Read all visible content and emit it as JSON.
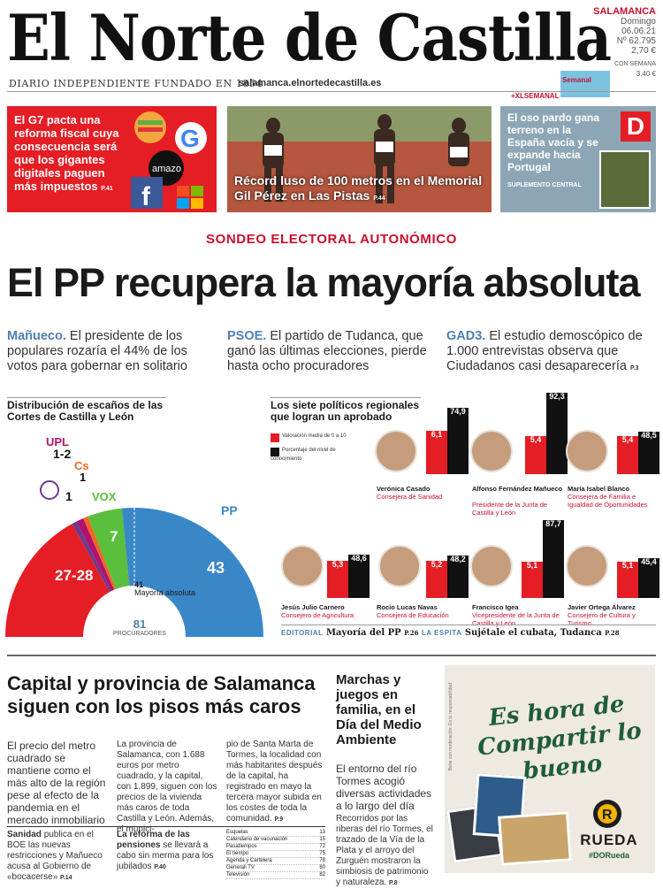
{
  "masthead": {
    "title": "El Norte de Castilla",
    "tagline": "DIARIO INDEPENDIENTE FUNDADO EN 1854",
    "url": "salamanca.elnortedecastilla.es"
  },
  "edition": {
    "city": "SALAMANCA",
    "day": "Domingo",
    "date": "06.06.21",
    "number": "Nº 62.795",
    "price": "2,70 €",
    "extra_label": "CON SEMANA",
    "extra_price": "3,40 €"
  },
  "xl": {
    "label": "+XLSEMANAL",
    "logo": "Semanal"
  },
  "promos": [
    {
      "text": "El G7 pacta una reforma fiscal cuya consecuencia será que los gigantes digitales paguen más impuestos",
      "page": "P.41",
      "color": "#e51d24"
    },
    {
      "text": "Récord luso de 100 metros en el Memorial Gil Pérez en Las Pistas",
      "page": "P.44"
    },
    {
      "text": "El oso pardo gana terreno en la España vacía y se expande hacia Portugal",
      "section": "SUPLEMENTO CENTRAL",
      "badge": "D"
    }
  ],
  "lead": {
    "kicker": "SONDEO ELECTORAL AUTONÓMICO",
    "headline": "El PP recupera la mayoría absoluta"
  },
  "columns": [
    {
      "name": "Mañueco.",
      "text": "El presidente de los populares rozaría el 44% de los votos para gobernar en solitario"
    },
    {
      "name": "PSOE.",
      "text": "El partido de Tudanca, que ganó las últimas elecciones, pierde hasta ocho procuradores"
    },
    {
      "name": "GAD3.",
      "text": "El estudio demoscópico de 1.000 entrevistas observa que Ciudadanos casi desaparecería",
      "page": "P.3"
    }
  ],
  "seats": {
    "title": "Distribución de escaños de las Cortes de Castilla y León",
    "total": "81",
    "total_label": "PROCURADORES",
    "majority": "41",
    "majority_label": "Mayoría absoluta",
    "parties": [
      {
        "name": "PSOE",
        "seats": "27-28",
        "color": "#e51d24"
      },
      {
        "name": "Podemos",
        "seats": "1",
        "color": "#6b3c8e"
      },
      {
        "name": "UPL",
        "seats": "1-2",
        "color": "#b0126e"
      },
      {
        "name": "Cs",
        "seats": "1",
        "color": "#f26522"
      },
      {
        "name": "VOX",
        "seats": "7",
        "color": "#5abf3c"
      },
      {
        "name": "PP",
        "seats": "43",
        "color": "#3a87c8"
      }
    ]
  },
  "politicians": {
    "title": "Los siete políticos regionales que logran un aprobado",
    "legend_red": "Valoración media de 0 a 10",
    "legend_black": "Porcentaje del nivel de conocimiento",
    "people": [
      {
        "name": "Verónica Casado",
        "role": "Consejera de Sanidad",
        "rating": "6,1",
        "known": "74,9"
      },
      {
        "name": "Alfonso Fernández Mañueco",
        "role": "Presidente de la Junta de Castilla y León",
        "rating": "5,4",
        "known": "92,3"
      },
      {
        "name": "María Isabel Blanco",
        "role": "Consejera de Familia e Igualdad de Oportunidades",
        "rating": "5,4",
        "known": "48,5"
      },
      {
        "name": "Jesús Julio Carnero",
        "role": "Consejero de Agricultura",
        "rating": "5,3",
        "known": "48,6"
      },
      {
        "name": "Rocío Lucas Navas",
        "role": "Consejera de Educación",
        "rating": "5,2",
        "known": "48,2"
      },
      {
        "name": "Francisco Igea",
        "role": "Vicepresidente de la Junta de Castilla y León",
        "rating": "5,1",
        "known": "87,7"
      },
      {
        "name": "Javier Ortega Álvarez",
        "role": "Consejero de Cultura y Turismo",
        "rating": "5,1",
        "known": "45,4"
      }
    ]
  },
  "editorial": {
    "label1": "EDITORIAL",
    "text1": "Mayoría del PP",
    "page1": "P.26",
    "label2": "LA ESPITA",
    "text2": "Sujétale el cubata, Tudanca",
    "page2": "P.28"
  },
  "story1": {
    "headline": "Capital y provincia de Salamanca siguen con los pisos más caros",
    "lead": "El precio del metro cuadrado se mantiene como el más alto de la región pese al efecto de la pandemia en el mercado inmobiliario",
    "body1": "La provincia de Salamanca, con 1.688 euros por metro cuadrado, y la capital, con 1.899, siguen con los precios de la vivienda más caros de toda Castilla y León. Además, el munici-",
    "body2": "pio de Santa Marta de Tormes, la localidad con más habitantes después de la capital, ha registrado en mayo la tercera mayor subida en los costes de toda la comunidad.",
    "page": "P.9"
  },
  "brief1": {
    "kicker": "Sanidad",
    "text": "publica en el BOE las nuevas restricciones y Mañueco acusa al Gobierno de «bocacerse»",
    "page": "P.14"
  },
  "brief2": {
    "kicker": "La reforma de las pensiones",
    "text": "se llevará a cabo sin merma para los jubilados",
    "page": "P.40"
  },
  "index": [
    {
      "label": "Esquelas",
      "page": "13"
    },
    {
      "label": "Calendario de vacunación",
      "page": "15"
    },
    {
      "label": "Pasatiempos",
      "page": "72"
    },
    {
      "label": "El tiempo",
      "page": "75"
    },
    {
      "label": "Agenda y Cartelera",
      "page": "78"
    },
    {
      "label": "Generali TV",
      "page": "80"
    },
    {
      "label": "Televisión",
      "page": "82"
    }
  ],
  "story2": {
    "headline": "Marchas y juegos en familia, en el Día del Medio Ambiente",
    "lead": "El entorno del río Tormes acogió diversas actividades a lo largo del día",
    "body": "Recorridos por las riberas del río Tormes, el trazado de la Vía de la Plata y el arroyo del Zurguén mostraron la simbiosis de patrimonio y naturaleza.",
    "page": "P.8"
  },
  "ad": {
    "slogan": "Es hora de Compartir lo bueno",
    "brand": "RUEDA",
    "hashtag": "#DORueda",
    "side": "Bebe con moderación. Es tu responsabilidad"
  }
}
